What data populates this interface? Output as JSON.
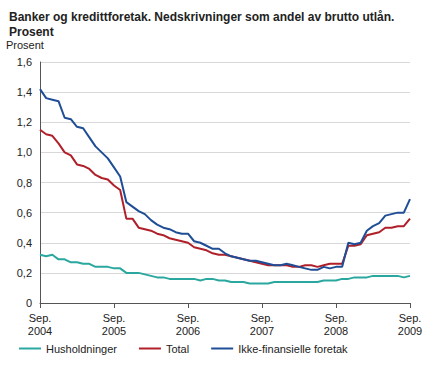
{
  "chart_data": {
    "type": "line",
    "title": "Banker og kredittforetak. Nedskrivninger som andel av brutto utlån. Prosent",
    "y_label": "Prosent",
    "categories": [
      "Sep.\n2004",
      null,
      null,
      null,
      null,
      null,
      null,
      null,
      null,
      null,
      null,
      null,
      "Sep.\n2005",
      null,
      null,
      null,
      null,
      null,
      null,
      null,
      null,
      null,
      null,
      null,
      "Sep.\n2006",
      null,
      null,
      null,
      null,
      null,
      null,
      null,
      null,
      null,
      null,
      null,
      "Sep.\n2007",
      null,
      null,
      null,
      null,
      null,
      null,
      null,
      null,
      null,
      null,
      null,
      "Sep.\n2008",
      null,
      null,
      null,
      null,
      null,
      null,
      null,
      null,
      null,
      null,
      null,
      "Sep.\n2009"
    ],
    "series": [
      {
        "name": "Husholdninger",
        "color": "#2aa8a0",
        "values": [
          0.32,
          0.31,
          0.32,
          0.29,
          0.29,
          0.27,
          0.27,
          0.26,
          0.26,
          0.24,
          0.24,
          0.24,
          0.23,
          0.23,
          0.2,
          0.2,
          0.2,
          0.19,
          0.18,
          0.17,
          0.17,
          0.16,
          0.16,
          0.16,
          0.16,
          0.16,
          0.15,
          0.16,
          0.16,
          0.15,
          0.15,
          0.14,
          0.14,
          0.14,
          0.13,
          0.13,
          0.13,
          0.13,
          0.14,
          0.14,
          0.14,
          0.14,
          0.14,
          0.14,
          0.14,
          0.14,
          0.15,
          0.15,
          0.15,
          0.16,
          0.16,
          0.17,
          0.17,
          0.17,
          0.18,
          0.18,
          0.18,
          0.18,
          0.18,
          0.17,
          0.18
        ]
      },
      {
        "name": "Total",
        "color": "#b0202a",
        "values": [
          1.15,
          1.12,
          1.11,
          1.06,
          1.0,
          0.98,
          0.92,
          0.91,
          0.89,
          0.85,
          0.83,
          0.82,
          0.78,
          0.75,
          0.56,
          0.56,
          0.5,
          0.49,
          0.48,
          0.46,
          0.45,
          0.43,
          0.42,
          0.41,
          0.4,
          0.37,
          0.36,
          0.35,
          0.33,
          0.32,
          0.32,
          0.31,
          0.3,
          0.29,
          0.28,
          0.27,
          0.26,
          0.25,
          0.25,
          0.25,
          0.25,
          0.24,
          0.24,
          0.25,
          0.25,
          0.24,
          0.25,
          0.26,
          0.26,
          0.26,
          0.38,
          0.38,
          0.39,
          0.45,
          0.46,
          0.47,
          0.5,
          0.5,
          0.51,
          0.51,
          0.56
        ]
      },
      {
        "name": "Ikke-finansielle foretak",
        "color": "#1f4e96",
        "values": [
          1.42,
          1.36,
          1.35,
          1.34,
          1.23,
          1.22,
          1.17,
          1.16,
          1.1,
          1.04,
          1.0,
          0.96,
          0.9,
          0.84,
          0.67,
          0.64,
          0.61,
          0.59,
          0.55,
          0.52,
          0.5,
          0.49,
          0.47,
          0.46,
          0.46,
          0.41,
          0.4,
          0.38,
          0.36,
          0.36,
          0.33,
          0.31,
          0.3,
          0.29,
          0.28,
          0.28,
          0.27,
          0.26,
          0.25,
          0.25,
          0.26,
          0.25,
          0.24,
          0.23,
          0.22,
          0.22,
          0.24,
          0.23,
          0.24,
          0.24,
          0.4,
          0.39,
          0.4,
          0.48,
          0.51,
          0.53,
          0.58,
          0.59,
          0.6,
          0.6,
          0.69
        ]
      }
    ],
    "ylim": [
      0,
      1.6
    ],
    "yticks": [
      0,
      {
        "value": 0.2,
        "label": "0,2"
      },
      {
        "value": 0.4,
        "label": "0,4"
      },
      {
        "value": 0.6,
        "label": "0,6"
      },
      {
        "value": 0.8,
        "label": "0,8"
      },
      {
        "value": 1.0,
        "label": "1,0"
      },
      {
        "value": 1.2,
        "label": "1,2"
      },
      {
        "value": 1.4,
        "label": "1,4"
      },
      {
        "value": 1.6,
        "label": "1,6"
      }
    ],
    "grid": true,
    "legend": "bottom"
  }
}
